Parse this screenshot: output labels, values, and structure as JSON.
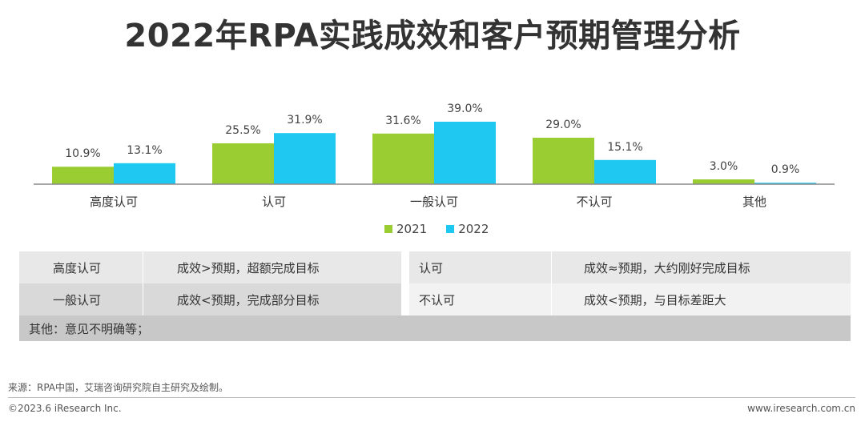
{
  "title": "2022年RPA实践成效和客户预期管理分析",
  "colors": {
    "s2021": "#9ACD32",
    "s2022": "#1EC8F0"
  },
  "chart_data": {
    "type": "bar",
    "categories": [
      "高度认可",
      "认可",
      "一般认可",
      "不认可",
      "其他"
    ],
    "series": [
      {
        "name": "2021",
        "values": [
          10.9,
          25.5,
          31.6,
          29.0,
          3.0
        ],
        "labels": [
          "10.9%",
          "25.5%",
          "31.6%",
          "29.0%",
          "3.0%"
        ]
      },
      {
        "name": "2022",
        "values": [
          13.1,
          31.9,
          39.0,
          15.1,
          0.9
        ],
        "labels": [
          "13.1%",
          "31.9%",
          "39.0%",
          "15.1%",
          "0.9%"
        ]
      }
    ],
    "ylim": [
      0,
      39.0
    ],
    "legend": "bottom-center"
  },
  "legend": {
    "s2021": "2021",
    "s2022": "2022"
  },
  "table": {
    "row1": {
      "k1": "高度认可",
      "v1": "成效>预期，超额完成目标",
      "k2": "认可",
      "v2": "成效≈预期，大约刚好完成目标"
    },
    "row2": {
      "k1": "一般认可",
      "v1": "成效<预期，完成部分目标",
      "k2": "不认可",
      "v2": "成效<预期，与目标差距大"
    },
    "row3": "其他：意见不明确等；"
  },
  "footer": {
    "source": "来源：RPA中国，艾瑞咨询研究院自主研究及绘制。",
    "copyright": "©2023.6 iResearch Inc.",
    "website": "www.iresearch.com.cn"
  }
}
